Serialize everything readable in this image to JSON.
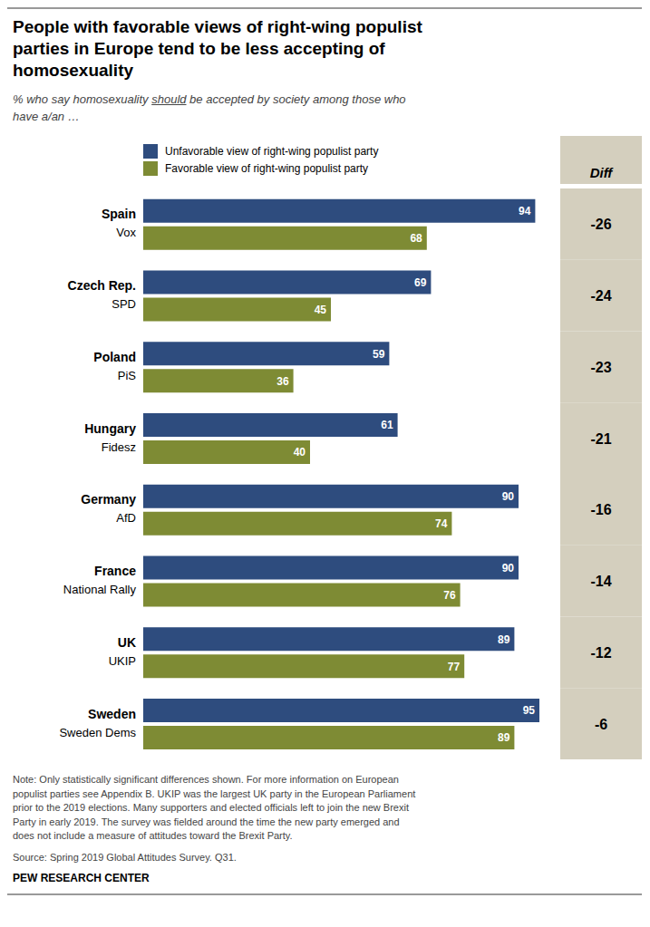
{
  "chart_data": {
    "type": "bar",
    "orientation": "horizontal",
    "title": "People with favorable views of right-wing populist\nparties in Europe tend to be less accepting of\nhomosexuality",
    "subtitle": "% who say homosexuality should be accepted by society among those who\nhave a/an …",
    "subtitle_underline": "should",
    "categories": [
      "Spain",
      "Czech Rep.",
      "Poland",
      "Hungary",
      "Germany",
      "France",
      "UK",
      "Sweden"
    ],
    "subcategories": [
      "Vox",
      "SPD",
      "PiS",
      "Fidesz",
      "AfD",
      "National Rally",
      "UKIP",
      "Sweden Dems"
    ],
    "series": [
      {
        "name": "Unfavorable view of right-wing populist party",
        "color": "#2E4C7E",
        "values": [
          94,
          69,
          59,
          61,
          90,
          90,
          89,
          95
        ]
      },
      {
        "name": "Favorable view of right-wing populist party",
        "color": "#7E8B34",
        "values": [
          68,
          45,
          36,
          40,
          74,
          76,
          77,
          89
        ]
      }
    ],
    "diff_label": "Diff",
    "diff": [
      -26,
      -24,
      -23,
      -21,
      -16,
      -14,
      -12,
      -6
    ],
    "xlim": [
      0,
      100
    ],
    "data_labels": true,
    "tick_labels": "y",
    "grid": false,
    "legend": "top left",
    "annotations": [
      "Note: Only statistically significant differences shown. For more information on European\npopulist parties see Appendix B. UKIP was the largest UK party in the European Parliament\nprior to the 2019 elections. Many supporters and elected officials left to join the new Brexit\nParty in early 2019. The survey was fielded around the time the new party emerged and\ndoes not include a measure of attitudes toward the Brexit Party.",
      "Source: Spring 2019 Global Attitudes Survey. Q31.",
      "PEW RESEARCH CENTER"
    ]
  }
}
